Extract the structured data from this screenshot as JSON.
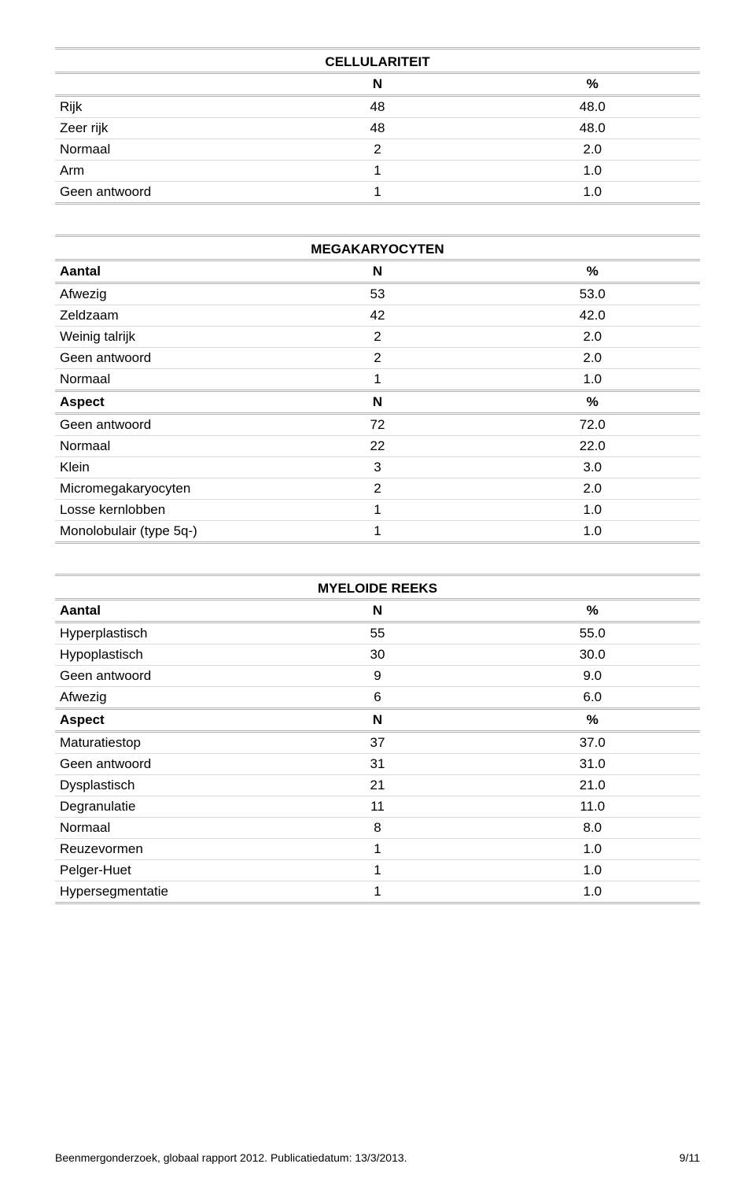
{
  "tables": [
    {
      "title": "CELLULARITEIT",
      "titleCentered": true,
      "sections": [
        {
          "header": [
            "",
            "N",
            "%"
          ],
          "rows": [
            [
              "Rijk",
              "48",
              "48.0"
            ],
            [
              "Zeer rijk",
              "48",
              "48.0"
            ],
            [
              "Normaal",
              "2",
              "2.0"
            ],
            [
              "Arm",
              "1",
              "1.0"
            ],
            [
              "Geen antwoord",
              "1",
              "1.0"
            ]
          ]
        }
      ]
    },
    {
      "title": "MEGAKARYOCYTEN",
      "titleCentered": true,
      "sections": [
        {
          "header": [
            "Aantal",
            "N",
            "%"
          ],
          "rows": [
            [
              "Afwezig",
              "53",
              "53.0"
            ],
            [
              "Zeldzaam",
              "42",
              "42.0"
            ],
            [
              "Weinig talrijk",
              "2",
              "2.0"
            ],
            [
              "Geen antwoord",
              "2",
              "2.0"
            ],
            [
              "Normaal",
              "1",
              "1.0"
            ]
          ]
        },
        {
          "header": [
            "Aspect",
            "N",
            "%"
          ],
          "rows": [
            [
              "Geen antwoord",
              "72",
              "72.0"
            ],
            [
              "Normaal",
              "22",
              "22.0"
            ],
            [
              "Klein",
              "3",
              "3.0"
            ],
            [
              "Micromegakaryocyten",
              "2",
              "2.0"
            ],
            [
              "Losse kernlobben",
              "1",
              "1.0"
            ],
            [
              "Monolobulair (type 5q-)",
              "1",
              "1.0"
            ]
          ]
        }
      ]
    },
    {
      "title": "MYELOIDE REEKS",
      "titleCentered": true,
      "sections": [
        {
          "header": [
            "Aantal",
            "N",
            "%"
          ],
          "rows": [
            [
              "Hyperplastisch",
              "55",
              "55.0"
            ],
            [
              "Hypoplastisch",
              "30",
              "30.0"
            ],
            [
              "Geen antwoord",
              "9",
              "9.0"
            ],
            [
              "Afwezig",
              "6",
              "6.0"
            ]
          ]
        },
        {
          "header": [
            "Aspect",
            "N",
            "%"
          ],
          "rows": [
            [
              "Maturatiestop",
              "37",
              "37.0"
            ],
            [
              "Geen antwoord",
              "31",
              "31.0"
            ],
            [
              "Dysplastisch",
              "21",
              "21.0"
            ],
            [
              "Degranulatie",
              "11",
              "11.0"
            ],
            [
              "Normaal",
              "8",
              "8.0"
            ],
            [
              "Reuzevormen",
              "1",
              "1.0"
            ],
            [
              "Pelger-Huet",
              "1",
              "1.0"
            ],
            [
              "Hypersegmentatie",
              "1",
              "1.0"
            ]
          ]
        }
      ]
    }
  ],
  "footer": {
    "left": "Beenmergonderzoek, globaal rapport 2012. Publicatiedatum: 13/3/2013.",
    "right": "9/11"
  }
}
